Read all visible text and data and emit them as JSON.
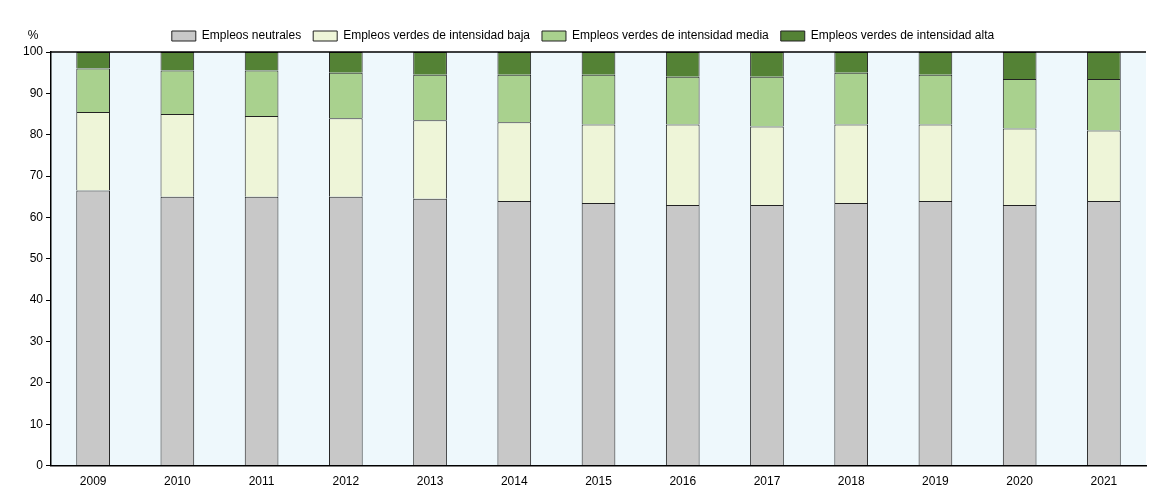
{
  "chart_data": {
    "type": "bar",
    "stacked": true,
    "ylabel": "%",
    "categories": [
      "2009",
      "2010",
      "2011",
      "2012",
      "2013",
      "2014",
      "2015",
      "2016",
      "2017",
      "2018",
      "2019",
      "2020",
      "2021"
    ],
    "series": [
      {
        "name": "Empleos neutrales",
        "color": "#c8c8c8",
        "values": [
          66.5,
          65,
          65,
          65,
          64.5,
          64,
          63.5,
          63,
          63,
          63.5,
          64,
          63,
          64
        ]
      },
      {
        "name": "Empleos verdes de intensidad baja",
        "color": "#eef5d8",
        "values": [
          19,
          20,
          19.5,
          19,
          19,
          19,
          19,
          19.5,
          19,
          19,
          18.5,
          18.5,
          17
        ]
      },
      {
        "name": "Empleos verdes de intensidad media",
        "color": "#a9d18e",
        "values": [
          10.5,
          10.5,
          11,
          11,
          11,
          11.5,
          12,
          11.5,
          12,
          12.5,
          12,
          12,
          12.5
        ]
      },
      {
        "name": "Empleos verdes de intensidad alta",
        "color": "#548235",
        "values": [
          4,
          4.5,
          4.5,
          5,
          5.5,
          5.5,
          5.5,
          6,
          6,
          5,
          5.5,
          6.5,
          6.5
        ]
      }
    ],
    "ylim": [
      0,
      100
    ],
    "yticks": [
      0,
      10,
      20,
      30,
      40,
      50,
      60,
      70,
      80,
      90,
      100
    ],
    "grid": false,
    "legend": "top"
  }
}
